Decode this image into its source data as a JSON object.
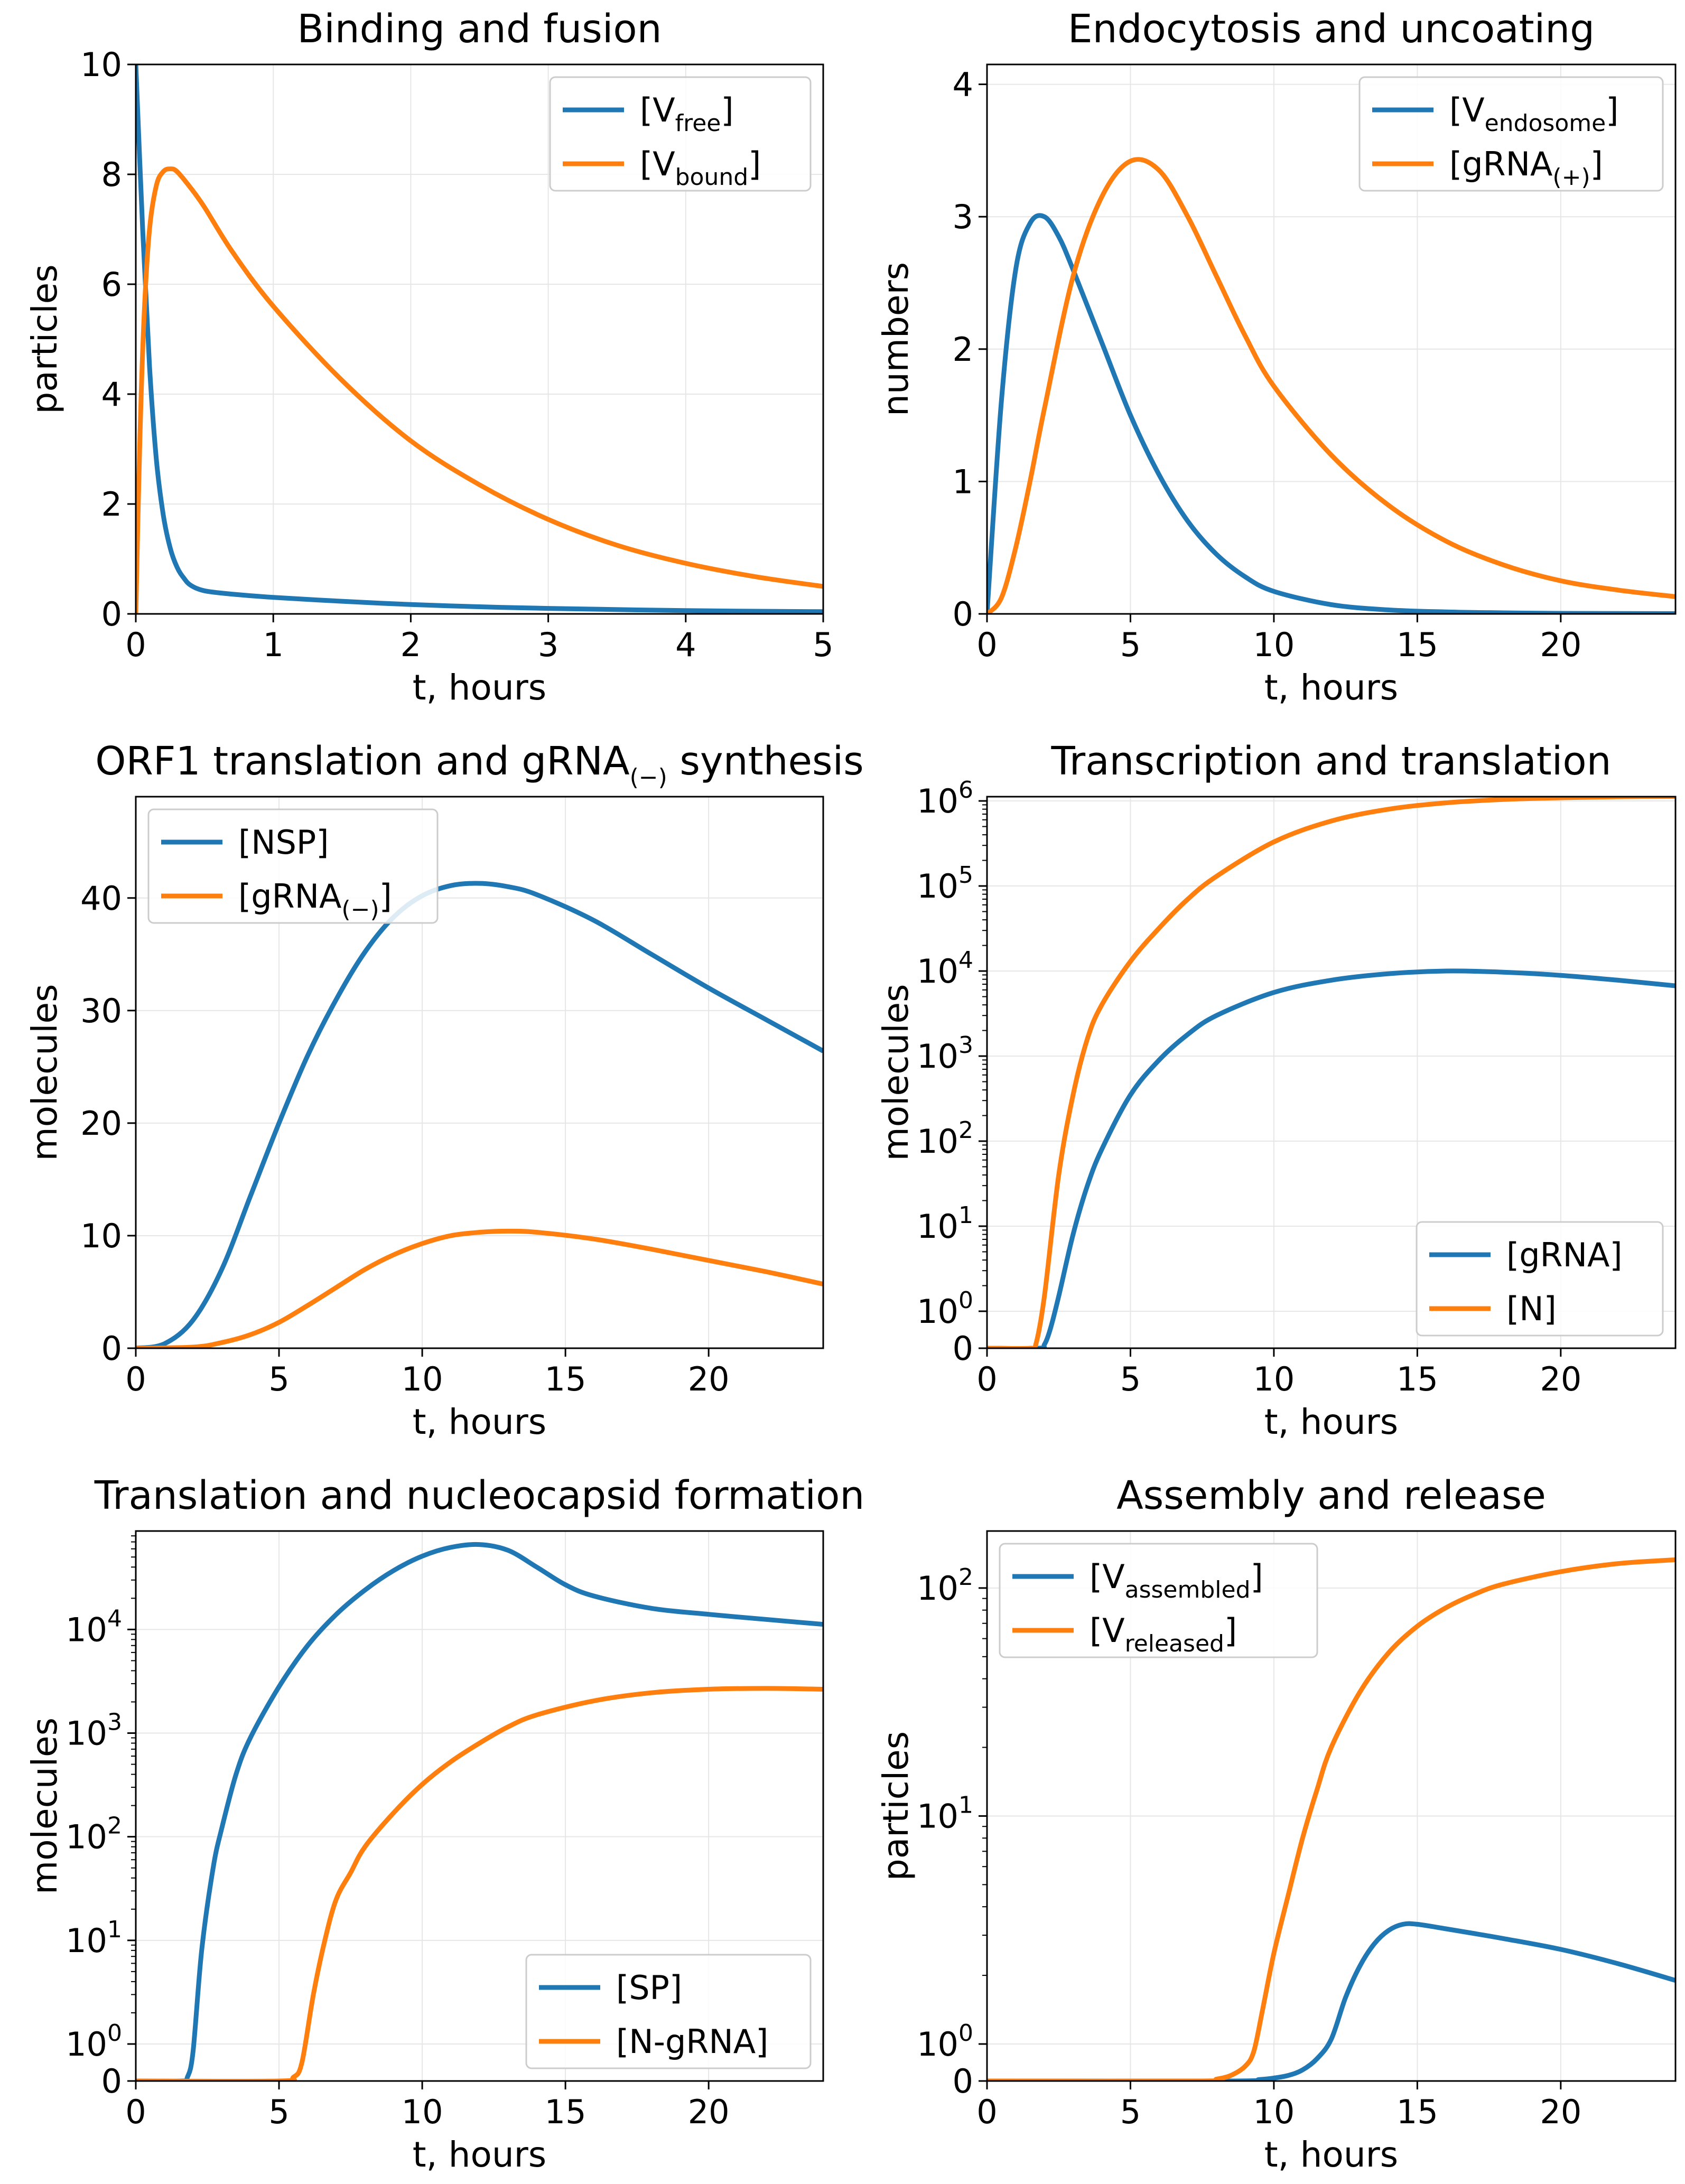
{
  "figure": {
    "colors": {
      "blue": "#1f77b4",
      "orange": "#ff7f0e"
    },
    "panels": [
      {
        "id": "binding",
        "title": "Binding and fusion",
        "xlabel": "t, hours",
        "ylabel": "particles",
        "scale": "linear",
        "xlim": [
          0,
          5
        ],
        "ylim": [
          0,
          10
        ],
        "xticks": [
          0,
          1,
          2,
          3,
          4,
          5
        ],
        "yticks": [
          0,
          2,
          4,
          6,
          8,
          10
        ],
        "legend_pos": "top-right",
        "series": [
          {
            "label": "[Vfree]",
            "base": "[V",
            "sub": "free",
            "close": "]",
            "color": "#1f77b4",
            "x": [
              0,
              0.05,
              0.1,
              0.15,
              0.2,
              0.25,
              0.3,
              0.35,
              0.4,
              0.5,
              0.7,
              1,
              1.5,
              2,
              2.5,
              3,
              4,
              5
            ],
            "y": [
              10,
              7.0,
              4.5,
              2.8,
              1.8,
              1.2,
              0.85,
              0.65,
              0.52,
              0.42,
              0.36,
              0.3,
              0.23,
              0.17,
              0.13,
              0.1,
              0.06,
              0.04
            ]
          },
          {
            "label": "[Vbound]",
            "base": "[V",
            "sub": "bound",
            "close": "]",
            "color": "#ff7f0e",
            "x": [
              0,
              0.03,
              0.06,
              0.1,
              0.15,
              0.2,
              0.25,
              0.3,
              0.4,
              0.5,
              0.7,
              1,
              1.5,
              2,
              2.5,
              3,
              3.5,
              4,
              4.5,
              5
            ],
            "y": [
              0,
              3.2,
              5.4,
              7.0,
              7.8,
              8.05,
              8.1,
              8.05,
              7.75,
              7.4,
              6.6,
              5.6,
              4.25,
              3.15,
              2.35,
              1.72,
              1.25,
              0.92,
              0.68,
              0.5
            ]
          }
        ]
      },
      {
        "id": "endocytosis",
        "title": "Endocytosis and uncoating",
        "xlabel": "t, hours",
        "ylabel": "numbers",
        "scale": "linear",
        "xlim": [
          0,
          24
        ],
        "ylim": [
          0,
          4.15
        ],
        "xticks": [
          0,
          5,
          10,
          15,
          20
        ],
        "yticks": [
          0,
          1,
          2,
          3,
          4
        ],
        "legend_pos": "top-right",
        "series": [
          {
            "label": "[Vendosome]",
            "base": "[V",
            "sub": "endosome",
            "close": "]",
            "color": "#1f77b4",
            "x": [
              0,
              0.5,
              1,
              1.5,
              2,
              2.5,
              3,
              4,
              5,
              6,
              7,
              8,
              9,
              10,
              12,
              14,
              16,
              18,
              20,
              24
            ],
            "y": [
              0,
              1.6,
              2.6,
              2.95,
              3.0,
              2.85,
              2.6,
              2.05,
              1.5,
              1.05,
              0.7,
              0.45,
              0.28,
              0.17,
              0.07,
              0.03,
              0.015,
              0.008,
              0.004,
              0.002
            ]
          },
          {
            "label": "[gRNA(+)]",
            "base": "[gRNA",
            "sub": "(+)",
            "close": "]",
            "color": "#ff7f0e",
            "x": [
              0,
              0.5,
              1,
              1.5,
              2,
              3,
              4,
              5,
              6,
              7,
              8,
              9,
              10,
              12,
              14,
              16,
              18,
              20,
              22,
              24
            ],
            "y": [
              0,
              0.12,
              0.5,
              1.0,
              1.55,
              2.55,
              3.15,
              3.42,
              3.35,
              3.0,
              2.55,
              2.1,
              1.72,
              1.2,
              0.82,
              0.55,
              0.37,
              0.25,
              0.18,
              0.13
            ]
          }
        ]
      },
      {
        "id": "orf1",
        "title": "ORF1 translation and gRNA",
        "title_sub": "(−)",
        "title_after": " synthesis",
        "xlabel": "t, hours",
        "ylabel": "molecules",
        "scale": "linear",
        "xlim": [
          0,
          24
        ],
        "ylim": [
          0,
          49
        ],
        "xticks": [
          0,
          5,
          10,
          15,
          20
        ],
        "yticks": [
          0,
          10,
          20,
          30,
          40
        ],
        "legend_pos": "top-left",
        "series": [
          {
            "label": "[NSP]",
            "base": "[NSP]",
            "sub": "",
            "close": "",
            "color": "#1f77b4",
            "x": [
              0,
              1,
              2,
              3,
              4,
              5,
              6,
              7,
              8,
              9,
              10,
              11,
              12,
              13,
              14,
              16,
              18,
              20,
              22,
              24
            ],
            "y": [
              0,
              0.4,
              2.5,
              7,
              13.5,
              20,
              26,
              31,
              35.2,
              38.3,
              40.2,
              41.1,
              41.3,
              41,
              40.3,
              38,
              35,
              32,
              29.2,
              26.4
            ]
          },
          {
            "label": "[gRNA(−)]",
            "base": "[gRNA",
            "sub": "(−)",
            "close": "]",
            "color": "#ff7f0e",
            "x": [
              0,
              2,
              3,
              4,
              5,
              6,
              7,
              8,
              9,
              10,
              11,
              12,
              13,
              14,
              16,
              18,
              20,
              22,
              24
            ],
            "y": [
              0,
              0.1,
              0.5,
              1.2,
              2.3,
              3.8,
              5.4,
              7,
              8.3,
              9.3,
              10,
              10.3,
              10.4,
              10.3,
              9.7,
              8.8,
              7.8,
              6.8,
              5.7
            ]
          }
        ]
      },
      {
        "id": "transcription",
        "title": "Transcription and translation",
        "xlabel": "t, hours",
        "ylabel": "molecules",
        "scale": "symlog",
        "xlim": [
          0,
          24
        ],
        "ylim_decades": [
          0,
          6.05
        ],
        "xticks": [
          0,
          5,
          10,
          15,
          20
        ],
        "yticks": [
          "0",
          "10^0",
          "10^1",
          "10^2",
          "10^3",
          "10^4",
          "10^5",
          "10^6"
        ],
        "legend_pos": "bottom-right",
        "series": [
          {
            "label": "[gRNA]",
            "base": "[gRNA]",
            "sub": "",
            "close": "",
            "color": "#1f77b4",
            "x": [
              0,
              1.8,
              2.0,
              2.2,
              2.5,
              3,
              3.5,
              4,
              5,
              6,
              7,
              8,
              10,
              12,
              14,
              16,
              18,
              20,
              22,
              24
            ],
            "y": [
              0,
              0,
              0.1,
              0.5,
              1.5,
              8,
              30,
              80,
              350,
              900,
              1800,
              3000,
              5600,
              7800,
              9300,
              10000,
              9700,
              8900,
              7800,
              6700
            ]
          },
          {
            "label": "[N]",
            "base": "[N]",
            "sub": "",
            "close": "",
            "color": "#ff7f0e",
            "x": [
              0,
              1.5,
              1.7,
              2.0,
              2.5,
              3,
              3.5,
              4,
              5,
              6,
              7,
              8,
              10,
              12,
              14,
              16,
              18,
              20,
              22,
              24
            ],
            "y": [
              0,
              0,
              0.1,
              1.5,
              40,
              350,
              1600,
              4000,
              13000,
              32000,
              70000,
              130000,
              330000,
              580000,
              800000,
              950000,
              1040000,
              1090000,
              1120000,
              1130000
            ]
          }
        ]
      },
      {
        "id": "nucleocapsid",
        "title": "Translation and nucleocapsid formation",
        "xlabel": "t, hours",
        "ylabel": "molecules",
        "scale": "symlog",
        "xlim": [
          0,
          24
        ],
        "ylim_decades": [
          0,
          4.95
        ],
        "xticks": [
          0,
          5,
          10,
          15,
          20
        ],
        "yticks": [
          "0",
          "10^0",
          "10^1",
          "10^2",
          "10^3",
          "10^4"
        ],
        "legend_pos": "bottom-right",
        "series": [
          {
            "label": "[SP]",
            "base": "[SP]",
            "sub": "",
            "close": "",
            "color": "#1f77b4",
            "x": [
              0,
              1.6,
              1.8,
              2.0,
              2.3,
              2.7,
              3,
              3.5,
              4,
              5,
              6,
              7,
              8,
              9,
              10,
              11,
              12,
              13,
              14,
              15,
              16,
              18,
              20,
              22,
              24
            ],
            "y": [
              0,
              0,
              0.1,
              0.8,
              8,
              50,
              120,
              400,
              900,
              2800,
              7000,
              14000,
              24000,
              37000,
              51000,
              62000,
              66000,
              58000,
              40000,
              27000,
              21000,
              16000,
              14000,
              12500,
              11200
            ]
          },
          {
            "label": "[N-gRNA]",
            "base": "[N-gRNA]",
            "sub": "",
            "close": "",
            "color": "#ff7f0e",
            "x": [
              0,
              5.0,
              5.5,
              5.8,
              6.2,
              6.6,
              7,
              7.5,
              8,
              9,
              10,
              11,
              12,
              13,
              14,
              16,
              18,
              20,
              22,
              24
            ],
            "y": [
              0,
              0,
              0.1,
              0.5,
              3,
              10,
              25,
              45,
              80,
              170,
              320,
              530,
              800,
              1150,
              1500,
              2050,
              2450,
              2650,
              2700,
              2650
            ]
          }
        ]
      },
      {
        "id": "assembly",
        "title": "Assembly and release",
        "xlabel": "t, hours",
        "ylabel": "particles",
        "scale": "symlog",
        "xlim": [
          0,
          24
        ],
        "ylim_decades": [
          0,
          2.25
        ],
        "xticks": [
          0,
          5,
          10,
          15,
          20
        ],
        "yticks": [
          "0",
          "10^0",
          "10^1",
          "10^2"
        ],
        "legend_pos": "top-left",
        "series": [
          {
            "label": "[Vassembled]",
            "base": "[V",
            "sub": "assembled",
            "close": "]",
            "color": "#1f77b4",
            "x": [
              0,
              8.5,
              9.5,
              10,
              10.5,
              11,
              11.5,
              12,
              12.5,
              13,
              13.5,
              14,
              14.5,
              15,
              16,
              17,
              18,
              20,
              22,
              24
            ],
            "y": [
              0,
              0,
              0.04,
              0.08,
              0.15,
              0.3,
              0.6,
              1.05,
              1.6,
              2.2,
              2.75,
              3.15,
              3.35,
              3.35,
              3.2,
              3.05,
              2.9,
              2.6,
              2.25,
              1.9
            ]
          },
          {
            "label": "[Vreleased]",
            "base": "[V",
            "sub": "released",
            "close": "]",
            "color": "#ff7f0e",
            "x": [
              0,
              7.5,
              8,
              8.5,
              9,
              9.3,
              9.6,
              10,
              10.5,
              11,
              11.5,
              12,
              13,
              14,
              15,
              16,
              17,
              18,
              20,
              22,
              24
            ],
            "y": [
              0,
              0,
              0.05,
              0.15,
              0.4,
              0.8,
              1.4,
              2.5,
              4.5,
              8,
              13,
              20,
              35,
              52,
              68,
              82,
              94,
              104,
              118,
              128,
              133
            ]
          }
        ]
      }
    ]
  },
  "chart_data": [
    {
      "type": "line",
      "title": "Binding and fusion",
      "xlabel": "t, hours",
      "ylabel": "particles",
      "xlim": [
        0,
        5
      ],
      "ylim": [
        0,
        10
      ],
      "series": [
        {
          "name": "[Vfree]",
          "x": [
            0,
            0.05,
            0.1,
            0.15,
            0.2,
            0.25,
            0.3,
            0.35,
            0.4,
            0.5,
            0.7,
            1,
            1.5,
            2,
            2.5,
            3,
            4,
            5
          ],
          "values": [
            10,
            7.0,
            4.5,
            2.8,
            1.8,
            1.2,
            0.85,
            0.65,
            0.52,
            0.42,
            0.36,
            0.3,
            0.23,
            0.17,
            0.13,
            0.1,
            0.06,
            0.04
          ]
        },
        {
          "name": "[Vbound]",
          "x": [
            0,
            0.03,
            0.06,
            0.1,
            0.15,
            0.2,
            0.25,
            0.3,
            0.4,
            0.5,
            0.7,
            1,
            1.5,
            2,
            2.5,
            3,
            3.5,
            4,
            4.5,
            5
          ],
          "values": [
            0,
            3.2,
            5.4,
            7.0,
            7.8,
            8.05,
            8.1,
            8.05,
            7.75,
            7.4,
            6.6,
            5.6,
            4.25,
            3.15,
            2.35,
            1.72,
            1.25,
            0.92,
            0.68,
            0.5
          ]
        }
      ]
    },
    {
      "type": "line",
      "title": "Endocytosis and uncoating",
      "xlabel": "t, hours",
      "ylabel": "numbers",
      "xlim": [
        0,
        24
      ],
      "ylim": [
        0,
        4.15
      ],
      "series": [
        {
          "name": "[Vendosome]",
          "peak": [
            2,
            3.0
          ]
        },
        {
          "name": "[gRNA(+)]",
          "peak": [
            5,
            3.42
          ]
        }
      ]
    },
    {
      "type": "line",
      "title": "ORF1 translation and gRNA(−) synthesis",
      "xlabel": "t, hours",
      "ylabel": "molecules",
      "xlim": [
        0,
        24
      ],
      "series": [
        {
          "name": "[NSP]",
          "peak": [
            12,
            41.3
          ]
        },
        {
          "name": "[gRNA(−)]",
          "peak": [
            13,
            10.4
          ]
        }
      ]
    },
    {
      "type": "line",
      "title": "Transcription and translation",
      "xlabel": "t, hours",
      "ylabel": "molecules",
      "yscale": "symlog",
      "xlim": [
        0,
        24
      ],
      "series": [
        {
          "name": "[gRNA]",
          "final": 6700
        },
        {
          "name": "[N]",
          "final": 1130000
        }
      ]
    },
    {
      "type": "line",
      "title": "Translation and nucleocapsid formation",
      "xlabel": "t, hours",
      "ylabel": "molecules",
      "yscale": "symlog",
      "xlim": [
        0,
        24
      ],
      "series": [
        {
          "name": "[SP]",
          "peak": [
            12,
            66000
          ]
        },
        {
          "name": "[N-gRNA]",
          "final": 2650
        }
      ]
    },
    {
      "type": "line",
      "title": "Assembly and release",
      "xlabel": "t, hours",
      "ylabel": "particles",
      "yscale": "symlog",
      "xlim": [
        0,
        24
      ],
      "series": [
        {
          "name": "[Vassembled]",
          "peak": [
            14.7,
            3.35
          ]
        },
        {
          "name": "[Vreleased]",
          "final": 133
        }
      ]
    }
  ]
}
